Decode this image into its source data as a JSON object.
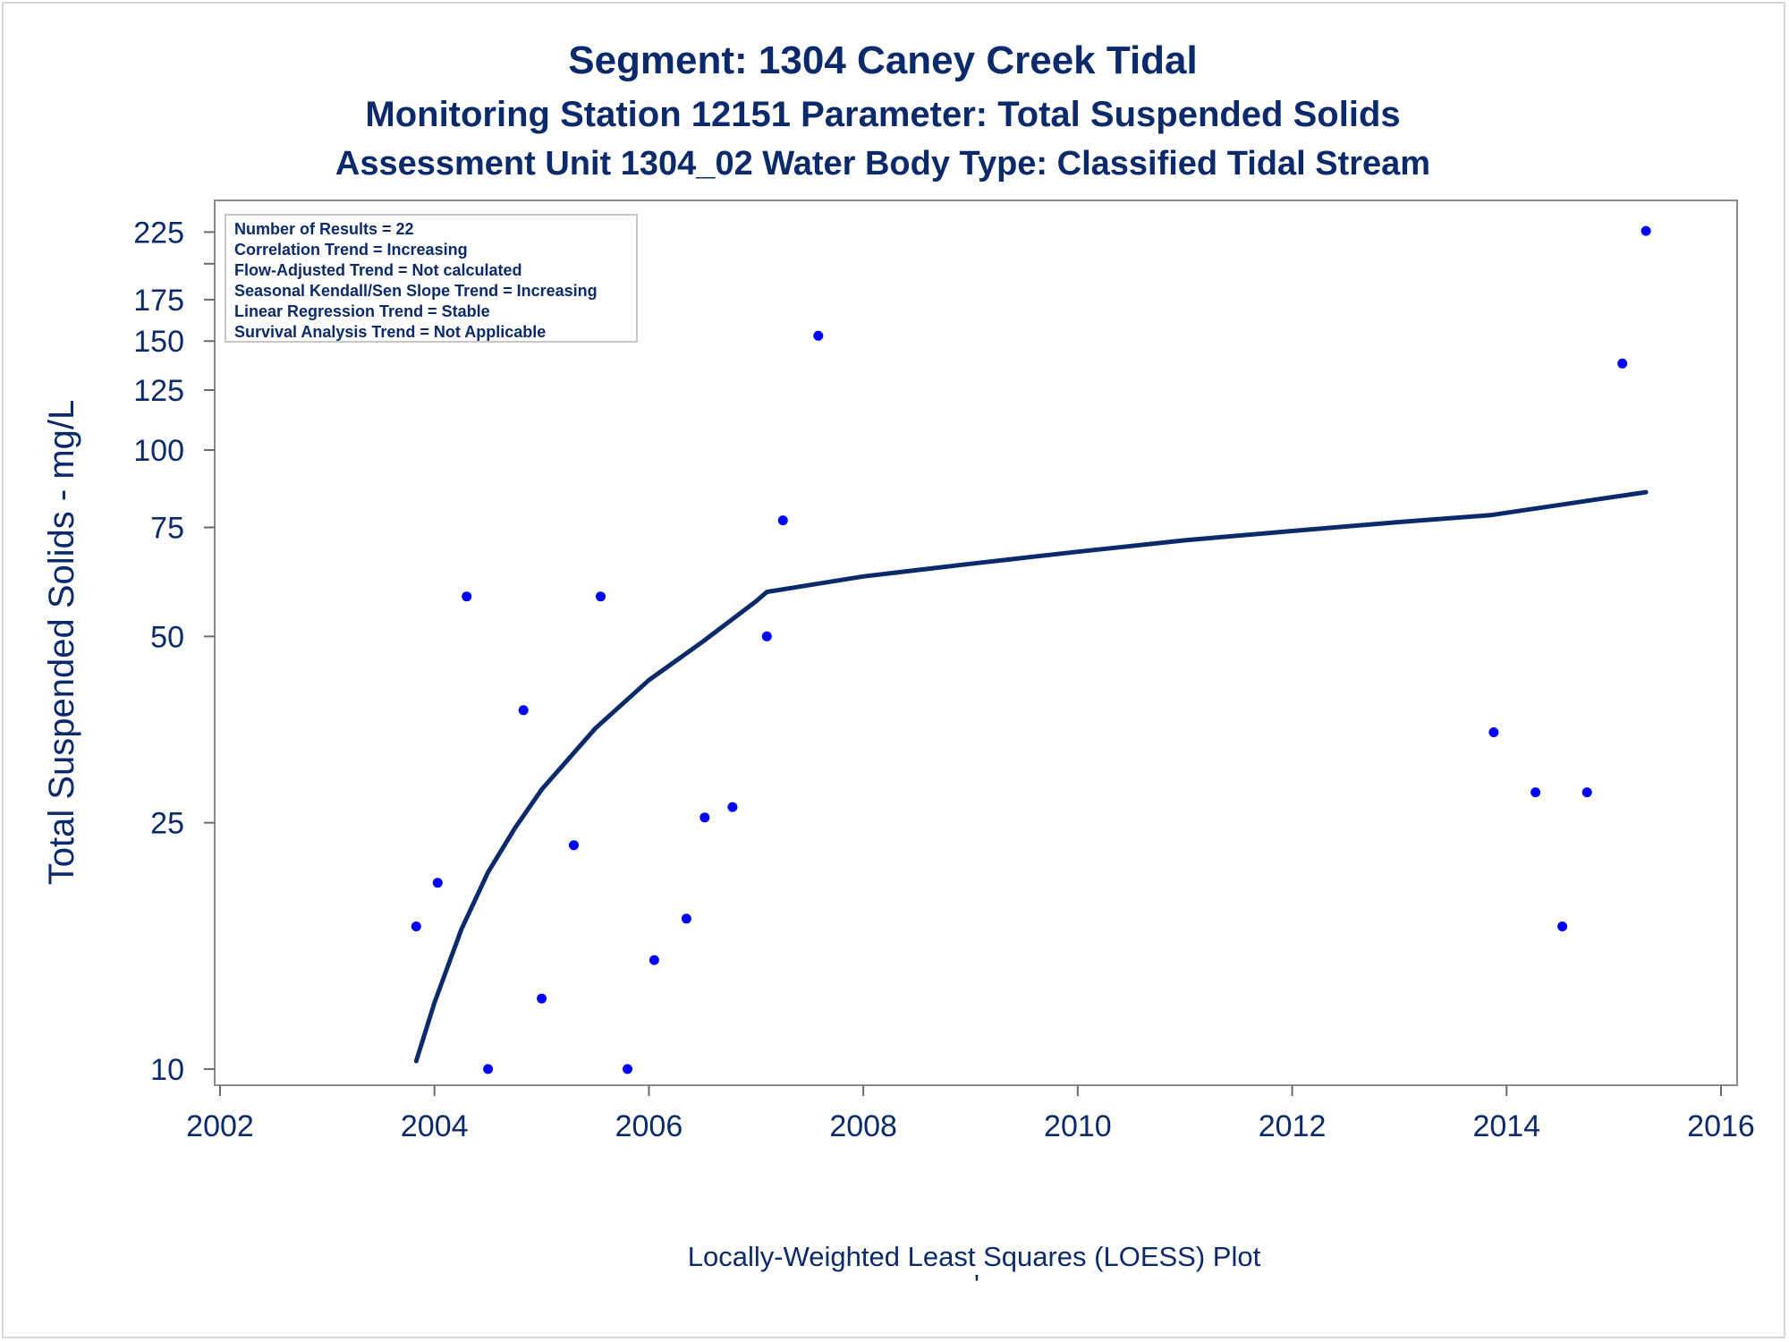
{
  "chart_data": {
    "type": "scatter",
    "title": "Segment: 1304  Caney Creek Tidal",
    "subtitle": "Monitoring Station 12151 Parameter: Total Suspended Solids",
    "subtitle2": "Assessment Unit 1304_02   Water Body Type: Classified Tidal Stream",
    "xlabel": "",
    "ylabel": "Total Suspended Solids - mg/L",
    "footnote": "Locally-Weighted Least Squares (LOESS) Plot",
    "footnote_mark": "'",
    "y_scale": "log",
    "xlim": [
      2002,
      2016
    ],
    "ylim": [
      9.8,
      240
    ],
    "x_ticks": [
      2002,
      2004,
      2006,
      2008,
      2010,
      2012,
      2014,
      2016
    ],
    "x_tick_labels": [
      "2002",
      "2004",
      "2006",
      "2008",
      "2010",
      "2012",
      "2014",
      "2016"
    ],
    "y_ticks": [
      10,
      25,
      50,
      75,
      100,
      125,
      150,
      175,
      225
    ],
    "y_tick_labels": [
      "10",
      "25",
      "50",
      "75",
      "100",
      "125",
      "150",
      "175",
      "225"
    ],
    "y_minor_ticks": [
      200
    ],
    "grid": false,
    "legend_inset": {
      "placement": "top-left",
      "lines": [
        "Number of Results = 22",
        "Correlation Trend = Increasing",
        "Flow-Adjusted Trend = Not calculated",
        "Seasonal Kendall/Sen Slope Trend = Increasing",
        "Linear Regression Trend = Stable",
        "Survival Analysis Trend = Not Applicable"
      ]
    },
    "series": [
      {
        "kind": "scatter",
        "color": "#0000ff",
        "points": [
          [
            2003.83,
            17
          ],
          [
            2004.03,
            20
          ],
          [
            2004.3,
            58
          ],
          [
            2004.5,
            10
          ],
          [
            2004.83,
            38
          ],
          [
            2005.0,
            13
          ],
          [
            2005.3,
            23
          ],
          [
            2005.55,
            58
          ],
          [
            2005.8,
            10
          ],
          [
            2006.05,
            15
          ],
          [
            2006.35,
            17.5
          ],
          [
            2006.52,
            25.5
          ],
          [
            2006.78,
            26.5
          ],
          [
            2007.1,
            50
          ],
          [
            2007.25,
            77
          ],
          [
            2007.58,
            153
          ],
          [
            2013.88,
            35
          ],
          [
            2014.27,
            28
          ],
          [
            2014.52,
            17
          ],
          [
            2014.75,
            28
          ],
          [
            2015.08,
            138
          ],
          [
            2015.3,
            226
          ]
        ]
      },
      {
        "kind": "line",
        "color": "#0b2a6b",
        "points": [
          [
            2003.83,
            10.3
          ],
          [
            2004.0,
            12.8
          ],
          [
            2004.25,
            16.8
          ],
          [
            2004.5,
            20.8
          ],
          [
            2004.75,
            24.5
          ],
          [
            2005.0,
            28.3
          ],
          [
            2005.5,
            35.5
          ],
          [
            2006.0,
            42.5
          ],
          [
            2006.5,
            49.0
          ],
          [
            2007.0,
            57.0
          ],
          [
            2007.1,
            59.0
          ],
          [
            2008.0,
            62.5
          ],
          [
            2009.0,
            65.5
          ],
          [
            2010.0,
            68.5
          ],
          [
            2011.0,
            71.5
          ],
          [
            2012.0,
            74.0
          ],
          [
            2013.0,
            76.5
          ],
          [
            2013.85,
            78.5
          ],
          [
            2015.3,
            85.5
          ]
        ]
      }
    ]
  }
}
